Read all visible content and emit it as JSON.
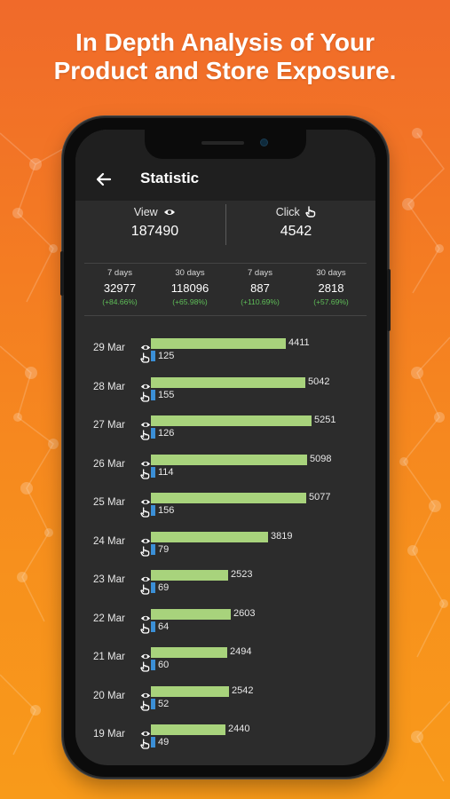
{
  "headline": {
    "line1": "In Depth Analysis of Your",
    "line2": "Product and Store Exposure."
  },
  "app": {
    "title": "Statistic",
    "back_icon": "arrow-left-icon"
  },
  "summary": {
    "view": {
      "label": "View",
      "icon": "eye-icon",
      "value": "187490"
    },
    "click": {
      "label": "Click",
      "icon": "hand-pointer-icon",
      "value": "4542"
    }
  },
  "periods": [
    {
      "days": "7 days",
      "value": "32977",
      "change": "(+84.66%)"
    },
    {
      "days": "30 days",
      "value": "118096",
      "change": "(+65.98%)"
    },
    {
      "days": "7 days",
      "value": "887",
      "change": "(+110.69%)"
    },
    {
      "days": "30 days",
      "value": "2818",
      "change": "(+57.69%)"
    }
  ],
  "colors": {
    "view_bar": "#a8d37c",
    "click_bar": "#3b8fd6",
    "positive_change": "#5fbf58",
    "screen_bg": "#2c2c2c",
    "appbar_bg": "#1f1f1f"
  },
  "chart_data": {
    "type": "bar",
    "categories": [
      "29 Mar",
      "28 Mar",
      "27 Mar",
      "26 Mar",
      "25 Mar",
      "24 Mar",
      "23 Mar",
      "22 Mar",
      "21 Mar",
      "20 Mar",
      "19 Mar"
    ],
    "series": [
      {
        "values": [
          4411,
          5042,
          5251,
          5098,
          5077,
          3819,
          2523,
          2603,
          2494,
          2542,
          2440
        ]
      },
      {
        "values": [
          125,
          155,
          126,
          114,
          156,
          79,
          69,
          64,
          60,
          52,
          49
        ]
      }
    ],
    "view_icon": "eye-icon",
    "click_icon": "hand-pointer-icon"
  }
}
